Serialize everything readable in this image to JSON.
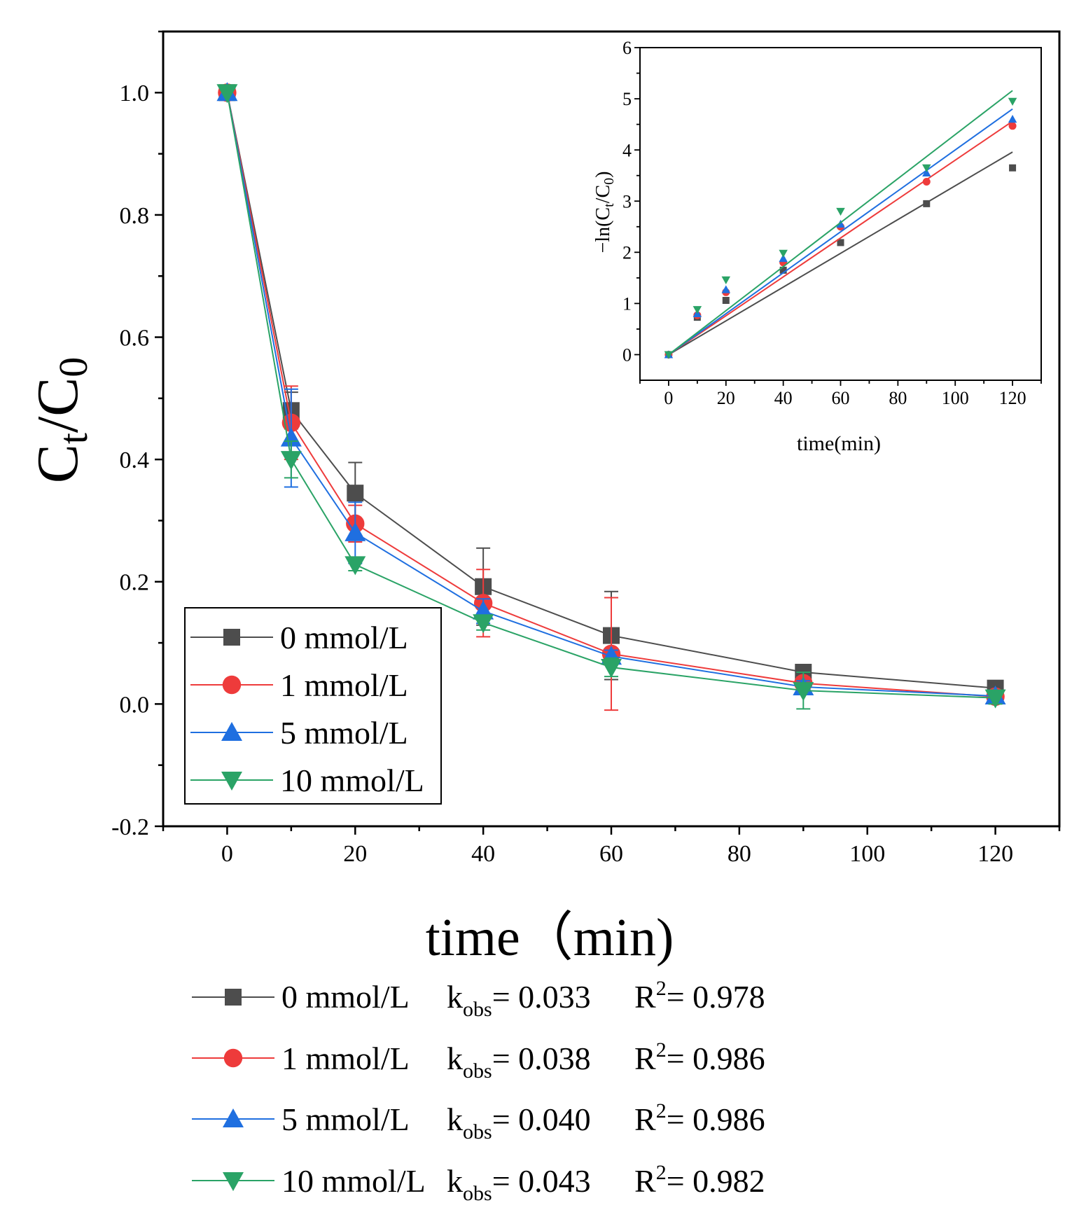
{
  "chart_data": [
    {
      "type": "line",
      "panel": "main",
      "title": "",
      "xlabel": "time（min)",
      "ylabel_base": "C",
      "ylabel_sub1": "t",
      "ylabel_mid": "/C",
      "ylabel_sub2": "0",
      "xlim": [
        -10,
        130
      ],
      "ylim": [
        -0.2,
        1.1
      ],
      "xticks": [
        0,
        20,
        40,
        60,
        80,
        100,
        120
      ],
      "xtick_labels": [
        "0",
        "20",
        "40",
        "60",
        "80",
        "100",
        "120"
      ],
      "yticks": [
        -0.2,
        0.0,
        0.2,
        0.4,
        0.6,
        0.8,
        1.0
      ],
      "ytick_labels": [
        "-0.2",
        "0.0",
        "0.2",
        "0.4",
        "0.6",
        "0.8",
        "1.0"
      ],
      "legend_position": "bottom-left",
      "x": [
        0,
        10,
        20,
        40,
        60,
        90,
        120
      ],
      "series": [
        {
          "name": "0 mmol/L",
          "color": "#4d4d4d",
          "marker": "square",
          "values": [
            1.0,
            0.48,
            0.345,
            0.192,
            0.112,
            0.052,
            0.026
          ],
          "errors": [
            0.0,
            0.03,
            0.05,
            0.063,
            0.072,
            0.012,
            0.01
          ]
        },
        {
          "name": "1 mmol/L",
          "color": "#ee3b3b",
          "marker": "circle",
          "values": [
            1.0,
            0.46,
            0.295,
            0.165,
            0.082,
            0.034,
            0.012
          ],
          "errors": [
            0.0,
            0.06,
            0.03,
            0.055,
            0.092,
            0.01,
            0.008
          ]
        },
        {
          "name": "5 mmol/L",
          "color": "#1f6fe0",
          "marker": "triangle-up",
          "values": [
            1.0,
            0.435,
            0.28,
            0.152,
            0.078,
            0.028,
            0.013
          ],
          "errors": [
            0.0,
            0.08,
            0.05,
            0.02,
            0.01,
            0.01,
            0.006
          ]
        },
        {
          "name": "10 mmol/L",
          "color": "#2aa366",
          "marker": "triangle-down",
          "values": [
            1.0,
            0.4,
            0.228,
            0.133,
            0.06,
            0.022,
            0.01
          ],
          "errors": [
            0.0,
            0.03,
            0.01,
            0.012,
            0.015,
            0.03,
            0.01
          ]
        }
      ]
    },
    {
      "type": "scatter",
      "panel": "inset",
      "title": "",
      "xlabel": "time(min)",
      "ylabel_base": "−ln(C",
      "ylabel_sub1": "t",
      "ylabel_mid": "/C",
      "ylabel_sub2": "0",
      "ylabel_end": ")",
      "xlim": [
        -10,
        130
      ],
      "ylim": [
        -0.5,
        6
      ],
      "xticks": [
        0,
        20,
        40,
        60,
        80,
        100,
        120
      ],
      "xtick_labels": [
        "0",
        "20",
        "40",
        "60",
        "80",
        "100",
        "120"
      ],
      "yticks": [
        0,
        1,
        2,
        3,
        4,
        5,
        6
      ],
      "ytick_labels": [
        "0",
        "1",
        "2",
        "3",
        "4",
        "5",
        "6"
      ],
      "x": [
        0,
        10,
        20,
        40,
        60,
        90,
        120
      ],
      "series": [
        {
          "name": "0 mmol/L",
          "color": "#4d4d4d",
          "marker": "square",
          "values": [
            0,
            0.73,
            1.06,
            1.65,
            2.19,
            2.95,
            3.65
          ],
          "fit_slope": 0.033
        },
        {
          "name": "1 mmol/L",
          "color": "#ee3b3b",
          "marker": "circle",
          "values": [
            0,
            0.77,
            1.22,
            1.8,
            2.5,
            3.38,
            4.47
          ],
          "fit_slope": 0.038
        },
        {
          "name": "5 mmol/L",
          "color": "#1f6fe0",
          "marker": "triangle-up",
          "values": [
            0,
            0.8,
            1.27,
            1.88,
            2.55,
            3.55,
            4.6
          ],
          "fit_slope": 0.04
        },
        {
          "name": "10 mmol/L",
          "color": "#2aa366",
          "marker": "triangle-down",
          "values": [
            0,
            0.88,
            1.46,
            1.98,
            2.8,
            3.65,
            4.95
          ],
          "fit_slope": 0.043
        }
      ]
    }
  ],
  "fit_legend": [
    {
      "label": "0 mmol/L",
      "k_text": "k",
      "k_sub": "obs",
      "k_value": "= 0.033",
      "r_text": "R",
      "r_sup": "2",
      "r_value": "= 0.978"
    },
    {
      "label": "1 mmol/L",
      "k_text": "k",
      "k_sub": "obs",
      "k_value": "= 0.038",
      "r_text": "R",
      "r_sup": "2",
      "r_value": "= 0.986"
    },
    {
      "label": "5 mmol/L",
      "k_text": "k",
      "k_sub": "obs",
      "k_value": "= 0.040",
      "r_text": "R",
      "r_sup": "2",
      "r_value": "= 0.986"
    },
    {
      "label": "10 mmol/L",
      "k_text": "k",
      "k_sub": "obs",
      "k_value": "= 0.043",
      "r_text": "R",
      "r_sup": "2",
      "r_value": "= 0.982"
    }
  ]
}
